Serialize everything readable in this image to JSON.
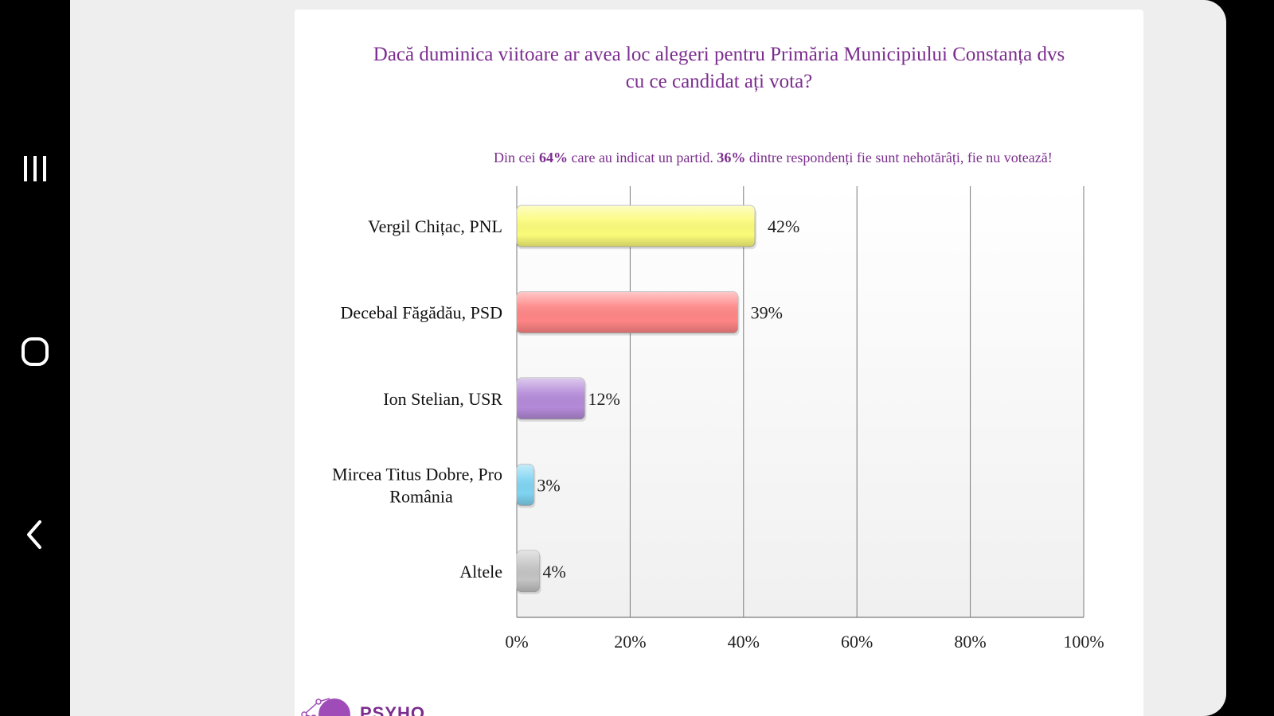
{
  "nav": {
    "recents_icon": "recents-icon",
    "home_icon": "home-icon",
    "back_icon": "back-icon"
  },
  "slide": {
    "title_line1": "Dacă duminica viitoare ar avea loc alegeri pentru Primăria Municipiului Constanța dvs",
    "title_line2": "cu ce candidat ați vota?",
    "subtitle": {
      "part1": "Din cei ",
      "bold1": "64%",
      "part2": " care au indicat un partid.  ",
      "bold2": "36%",
      "part3": " dintre respondenți fie sunt nehotărâți, fie nu votează!"
    },
    "logo_text": "PSYHO GLOBAL"
  },
  "chart_data": {
    "type": "bar",
    "orientation": "horizontal",
    "categories": [
      "Vergil Chițac, PNL",
      "Decebal Făgădău, PSD",
      "Ion Stelian, USR",
      "Mircea Titus Dobre, Pro România",
      "Altele"
    ],
    "category_lines": [
      [
        "Vergil Chițac, PNL"
      ],
      [
        "Decebal Făgădău, PSD"
      ],
      [
        "Ion Stelian, USR"
      ],
      [
        "Mircea Titus Dobre, Pro",
        "România"
      ],
      [
        "Altele"
      ]
    ],
    "values": [
      42,
      39,
      12,
      3,
      4
    ],
    "value_labels": [
      "42%",
      "39%",
      "12%",
      "3%",
      "4%"
    ],
    "colors": [
      "#fbfb7a",
      "#ff8585",
      "#b48ad9",
      "#7fd4f2",
      "#c4c4c4"
    ],
    "xlim": [
      0,
      100
    ],
    "xticks": [
      0,
      20,
      40,
      60,
      80,
      100
    ],
    "xtick_labels": [
      "0%",
      "20%",
      "40%",
      "60%",
      "80%",
      "100%"
    ],
    "grid": true
  }
}
